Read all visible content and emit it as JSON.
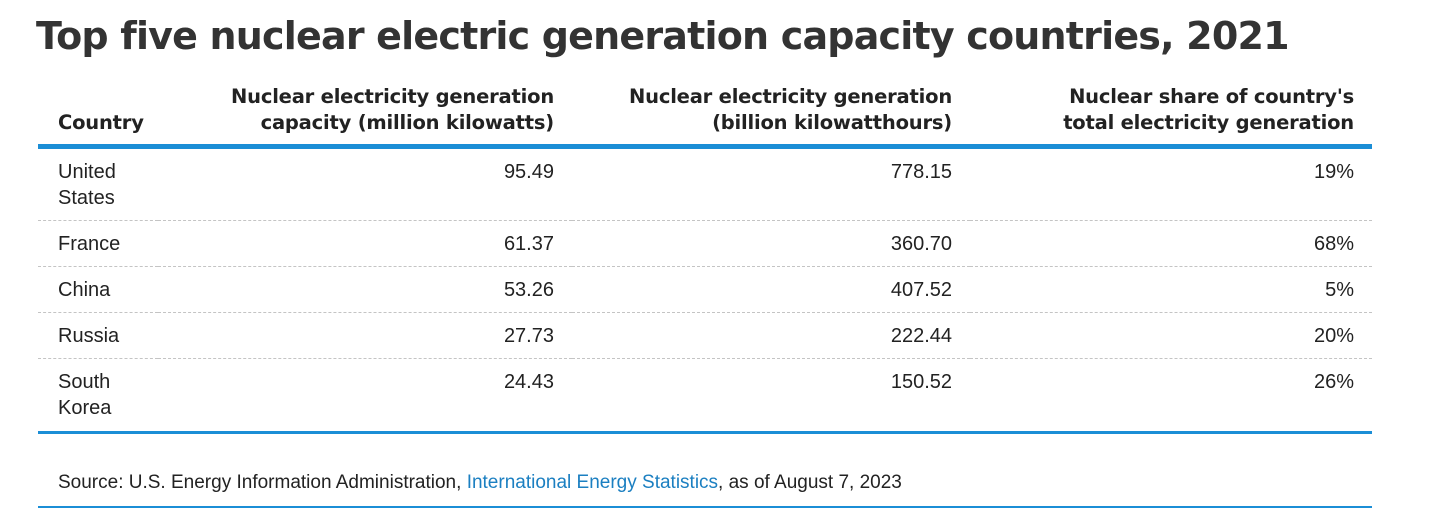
{
  "chart_data": {
    "type": "table",
    "title": "Top five nuclear electric generation capacity countries, 2021",
    "columns": [
      "Country",
      "Nuclear electricity generation capacity (million kilowatts)",
      "Nuclear electricity generation (billion kilowatthours)",
      "Nuclear share of country's total electricity generation"
    ],
    "header": {
      "country": "Country",
      "capacity_line1": "Nuclear electricity generation",
      "capacity_line2": "capacity (million kilowatts)",
      "generation_line1": "Nuclear electricity generation",
      "generation_line2": "(billion kilowatthours)",
      "share_line1": "Nuclear share of country's",
      "share_line2": "total electricity generation"
    },
    "rows": [
      {
        "country": "United States",
        "country_line1": "United",
        "country_line2": "States",
        "capacity": "95.49",
        "generation": "778.15",
        "share": "19%"
      },
      {
        "country": "France",
        "country_line1": "France",
        "country_line2": "",
        "capacity": "61.37",
        "generation": "360.70",
        "share": "68%"
      },
      {
        "country": "China",
        "country_line1": "China",
        "country_line2": "",
        "capacity": "53.26",
        "generation": "407.52",
        "share": "5%"
      },
      {
        "country": "Russia",
        "country_line1": "Russia",
        "country_line2": "",
        "capacity": "27.73",
        "generation": "222.44",
        "share": "20%"
      },
      {
        "country": "South Korea",
        "country_line1": "South",
        "country_line2": "Korea",
        "capacity": "24.43",
        "generation": "150.52",
        "share": "26%"
      }
    ],
    "capacity_values": [
      95.49,
      61.37,
      53.26,
      27.73,
      24.43
    ],
    "generation_values": [
      778.15,
      360.7,
      407.52,
      222.44,
      150.52
    ],
    "share_percent_values": [
      19,
      68,
      5,
      20,
      26
    ]
  },
  "source": {
    "prefix": "Source: U.S. Energy Information Administration, ",
    "link_text": "International Energy Statistics",
    "suffix": ", as of August 7, 2023"
  },
  "colors": {
    "accent": "#1b8ed6",
    "link": "#1b7fc1",
    "text": "#222222",
    "title": "#333333",
    "divider": "#c4c4c4"
  }
}
